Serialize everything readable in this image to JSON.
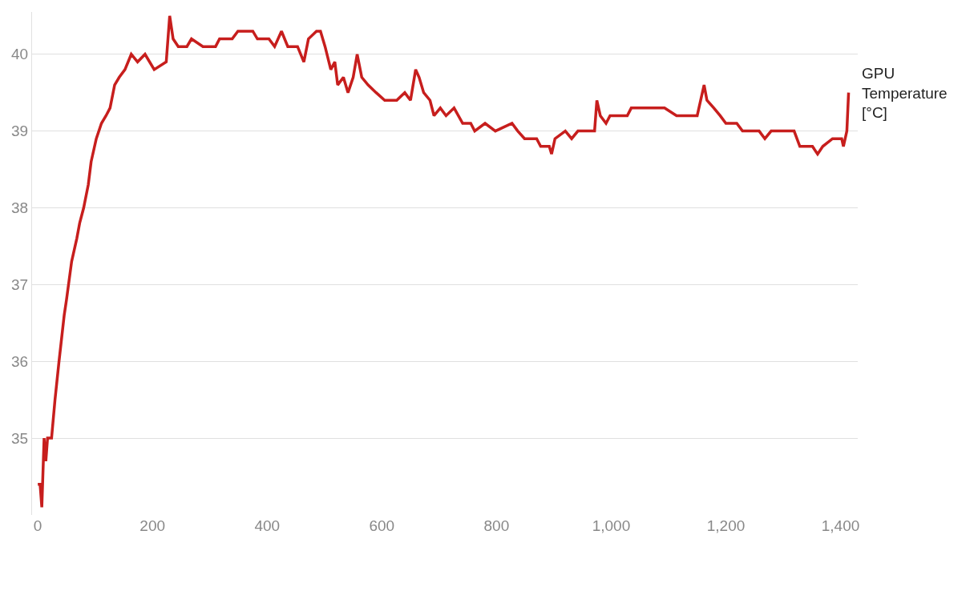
{
  "chart_data": {
    "type": "line",
    "xlim": [
      -10,
      1430
    ],
    "ylim": [
      34.0,
      40.55
    ],
    "xticks": [
      0,
      200,
      400,
      600,
      800,
      {
        "value": 1000,
        "label": "1,000"
      },
      {
        "value": 1200,
        "label": "1,200"
      },
      {
        "value": 1400,
        "label": "1,400"
      }
    ],
    "yticks": [
      35,
      36,
      37,
      38,
      39,
      40
    ],
    "grid": "y",
    "series": [
      {
        "name": "GPU Temperature [°C]",
        "color": "#c71e1d",
        "x": [
          0,
          4,
          7,
          11,
          14,
          17,
          24,
          30,
          37,
          46,
          50,
          59,
          68,
          73,
          80,
          88,
          93,
          102,
          111,
          119,
          126,
          134,
          142,
          152,
          163,
          174,
          187,
          203,
          224,
          230,
          236,
          245,
          260,
          268,
          288,
          310,
          317,
          339,
          349,
          375,
          383,
          403,
          413,
          425,
          436,
          453,
          464,
          472,
          486,
          493,
          501,
          511,
          518,
          523,
          533,
          541,
          550,
          557,
          565,
          576,
          590,
          605,
          626,
          640,
          650,
          659,
          665,
          673,
          684,
          691,
          702,
          712,
          726,
          741,
          755,
          762,
          780,
          798,
          827,
          837,
          849,
          870,
          877,
          892,
          896,
          902,
          920,
          931,
          942,
          971,
          975,
          981,
          991,
          998,
          1028,
          1035,
          1093,
          1114,
          1150,
          1162,
          1167,
          1179,
          1190,
          1200,
          1219,
          1229,
          1258,
          1268,
          1279,
          1319,
          1329,
          1351,
          1360,
          1369,
          1386,
          1402,
          1405,
          1411,
          1414
        ],
        "values": [
          34.4,
          34.4,
          34.1,
          35.0,
          34.7,
          35.0,
          35.0,
          35.5,
          36.0,
          36.6,
          36.8,
          37.3,
          37.6,
          37.8,
          38.0,
          38.3,
          38.6,
          38.9,
          39.1,
          39.2,
          39.3,
          39.6,
          39.7,
          39.8,
          40.0,
          39.9,
          40.0,
          39.8,
          39.9,
          40.5,
          40.2,
          40.1,
          40.1,
          40.2,
          40.1,
          40.1,
          40.2,
          40.2,
          40.3,
          40.3,
          40.2,
          40.2,
          40.1,
          40.3,
          40.1,
          40.1,
          39.9,
          40.2,
          40.3,
          40.3,
          40.1,
          39.8,
          39.9,
          39.6,
          39.7,
          39.5,
          39.7,
          40.0,
          39.7,
          39.6,
          39.5,
          39.4,
          39.4,
          39.5,
          39.4,
          39.8,
          39.7,
          39.5,
          39.4,
          39.2,
          39.3,
          39.2,
          39.3,
          39.1,
          39.1,
          39.0,
          39.1,
          39.0,
          39.1,
          39.0,
          38.9,
          38.9,
          38.8,
          38.8,
          38.7,
          38.9,
          39.0,
          38.9,
          39.0,
          39.0,
          39.4,
          39.2,
          39.1,
          39.2,
          39.2,
          39.3,
          39.3,
          39.2,
          39.2,
          39.6,
          39.4,
          39.3,
          39.2,
          39.1,
          39.1,
          39.0,
          39.0,
          38.9,
          39.0,
          39.0,
          38.8,
          38.8,
          38.7,
          38.8,
          38.9,
          38.9,
          38.8,
          39.0,
          39.5
        ]
      }
    ]
  }
}
